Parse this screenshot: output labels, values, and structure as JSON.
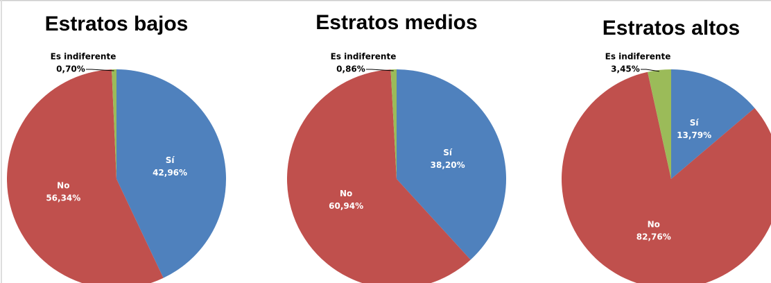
{
  "chart_data": [
    {
      "type": "pie",
      "title": "Estratos bajos",
      "categories": [
        "Sí",
        "No",
        "Es indiferente"
      ],
      "values": [
        42.96,
        56.34,
        0.7
      ],
      "value_labels": [
        "42,96%",
        "56,34%",
        "0,70%"
      ],
      "colors": [
        "#4f81bd",
        "#c0504d",
        "#9bbb59"
      ]
    },
    {
      "type": "pie",
      "title": "Estratos medios",
      "categories": [
        "Sí",
        "No",
        "Es indiferente"
      ],
      "values": [
        38.2,
        60.94,
        0.86
      ],
      "value_labels": [
        "38,20%",
        "60,94%",
        "0,86%"
      ],
      "colors": [
        "#4f81bd",
        "#c0504d",
        "#9bbb59"
      ]
    },
    {
      "type": "pie",
      "title": "Estratos altos",
      "categories": [
        "Sí",
        "No",
        "Es indiferente"
      ],
      "values": [
        13.79,
        82.76,
        3.45
      ],
      "value_labels": [
        "13,79%",
        "82,76%",
        "3,45%"
      ],
      "colors": [
        "#4f81bd",
        "#c0504d",
        "#9bbb59"
      ]
    }
  ]
}
